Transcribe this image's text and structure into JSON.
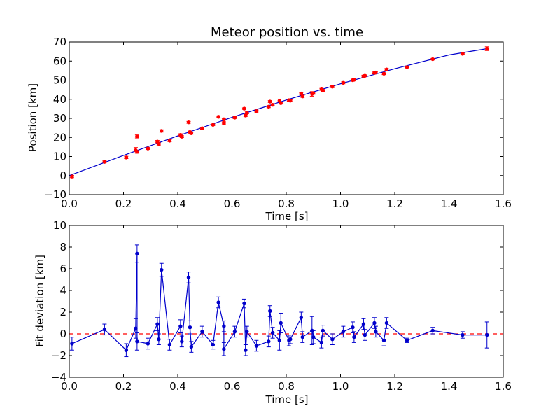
{
  "chart_data": [
    {
      "type": "scatter",
      "title": "Meteor position vs. time",
      "xlabel": "Time [s]",
      "ylabel": "Position [km]",
      "xlim": [
        0,
        1.6
      ],
      "ylim": [
        -10,
        70
      ],
      "xticks": [
        "0.0",
        "0.2",
        "0.4",
        "0.6",
        "0.8",
        "1.0",
        "1.2",
        "1.4",
        "1.6"
      ],
      "yticks": [
        "−10",
        "0",
        "10",
        "20",
        "30",
        "40",
        "50",
        "60",
        "70"
      ],
      "grid": false,
      "series": [
        {
          "kind": "points-with-error",
          "color": "#ff0000",
          "x": [
            0.01,
            0.13,
            0.21,
            0.245,
            0.25,
            0.25,
            0.29,
            0.325,
            0.33,
            0.34,
            0.37,
            0.41,
            0.415,
            0.44,
            0.445,
            0.45,
            0.49,
            0.53,
            0.55,
            0.57,
            0.57,
            0.61,
            0.645,
            0.65,
            0.655,
            0.69,
            0.735,
            0.74,
            0.75,
            0.775,
            0.78,
            0.81,
            0.815,
            0.855,
            0.86,
            0.895,
            0.9,
            0.93,
            0.935,
            0.97,
            1.01,
            1.045,
            1.05,
            1.085,
            1.09,
            1.125,
            1.13,
            1.16,
            1.17,
            1.245,
            1.34,
            1.45,
            1.54
          ],
          "y": [
            -0.5,
            7.2,
            9.5,
            13.3,
            20.5,
            12.5,
            14.2,
            17.8,
            16.6,
            23.4,
            18.3,
            21.3,
            20.4,
            27.9,
            22.8,
            22.2,
            24.8,
            26.6,
            30.8,
            29.5,
            27.6,
            30.4,
            35.1,
            31.5,
            32.9,
            33.8,
            36.1,
            38.8,
            37.1,
            39.2,
            38.0,
            39.5,
            39.3,
            43.0,
            41.5,
            42.8,
            43.2,
            45.2,
            44.6,
            46.6,
            48.6,
            50.0,
            50.2,
            52.1,
            52.3,
            53.8,
            54.0,
            53.4,
            55.6,
            56.8,
            61.0,
            63.8,
            66.5
          ],
          "yerr": [
            0.6,
            0.5,
            0.6,
            1.4,
            0.8,
            0.8,
            0.5,
            0.6,
            0.6,
            0.6,
            0.5,
            0.6,
            0.5,
            0.5,
            0.6,
            0.5,
            0.5,
            0.4,
            0.5,
            0.5,
            0.6,
            0.5,
            0.4,
            0.5,
            0.5,
            0.5,
            0.5,
            0.5,
            0.5,
            0.9,
            0.5,
            0.5,
            0.4,
            0.5,
            0.5,
            1.2,
            0.6,
            0.5,
            0.5,
            0.5,
            0.5,
            0.5,
            0.5,
            0.5,
            0.5,
            0.5,
            0.5,
            0.5,
            0.5,
            0.4,
            0.4,
            0.3,
            1.0
          ]
        },
        {
          "kind": "line",
          "color": "#0000cc",
          "x": [
            0,
            0.2,
            0.4,
            0.6,
            0.8,
            1.0,
            1.2,
            1.4,
            1.54
          ],
          "y": [
            0,
            10.6,
            20.8,
            30.5,
            39.6,
            48.1,
            56.0,
            63.2,
            66.5
          ]
        }
      ]
    },
    {
      "type": "line",
      "xlabel": "Time [s]",
      "ylabel": "Fit deviation [km]",
      "xlim": [
        0,
        1.6
      ],
      "ylim": [
        -4,
        10
      ],
      "xticks": [
        "0.0",
        "0.2",
        "0.4",
        "0.6",
        "0.8",
        "1.0",
        "1.2",
        "1.4",
        "1.6"
      ],
      "yticks": [
        "−4",
        "−2",
        "0",
        "2",
        "4",
        "6",
        "8",
        "10"
      ],
      "grid": false,
      "reference_line": {
        "y": 0,
        "color": "#ff0000",
        "style": "dashed"
      },
      "series": [
        {
          "kind": "line-with-error",
          "color": "#0000cc",
          "x": [
            0.01,
            0.13,
            0.21,
            0.245,
            0.25,
            0.25,
            0.29,
            0.325,
            0.33,
            0.34,
            0.37,
            0.41,
            0.415,
            0.44,
            0.445,
            0.45,
            0.49,
            0.53,
            0.55,
            0.57,
            0.57,
            0.61,
            0.645,
            0.65,
            0.655,
            0.69,
            0.735,
            0.74,
            0.75,
            0.775,
            0.78,
            0.81,
            0.815,
            0.855,
            0.86,
            0.895,
            0.9,
            0.93,
            0.935,
            0.97,
            1.01,
            1.045,
            1.05,
            1.085,
            1.09,
            1.125,
            1.13,
            1.16,
            1.17,
            1.245,
            1.34,
            1.45,
            1.54
          ],
          "y": [
            -0.9,
            0.4,
            -1.5,
            0.5,
            7.4,
            -0.7,
            -0.9,
            0.9,
            -0.5,
            5.9,
            -1.0,
            0.7,
            -0.7,
            5.2,
            0.6,
            -1.2,
            0.2,
            -1.0,
            2.9,
            0.7,
            -1.4,
            0.2,
            2.8,
            -1.5,
            0.2,
            -1.1,
            -0.7,
            2.1,
            0.1,
            -0.6,
            1.0,
            -0.6,
            -0.5,
            1.5,
            -0.3,
            0.3,
            -0.3,
            -0.8,
            0.3,
            -0.5,
            0.2,
            0.6,
            -0.3,
            0.9,
            -0.1,
            1.0,
            0.2,
            -0.6,
            1.0,
            -0.6,
            0.3,
            -0.1,
            -0.1
          ],
          "yerr": [
            0.6,
            0.5,
            0.6,
            0.9,
            0.8,
            0.8,
            0.5,
            0.6,
            0.5,
            0.6,
            0.5,
            0.6,
            0.5,
            0.5,
            0.6,
            0.5,
            0.5,
            0.4,
            0.5,
            0.5,
            0.6,
            0.5,
            0.4,
            0.5,
            0.5,
            0.5,
            0.5,
            0.5,
            0.5,
            0.9,
            0.9,
            0.5,
            0.4,
            0.5,
            0.5,
            1.3,
            0.6,
            0.5,
            0.5,
            0.5,
            0.5,
            0.5,
            0.5,
            0.5,
            0.5,
            0.5,
            0.5,
            0.5,
            0.5,
            0.2,
            0.3,
            0.3,
            1.2
          ]
        }
      ]
    }
  ]
}
